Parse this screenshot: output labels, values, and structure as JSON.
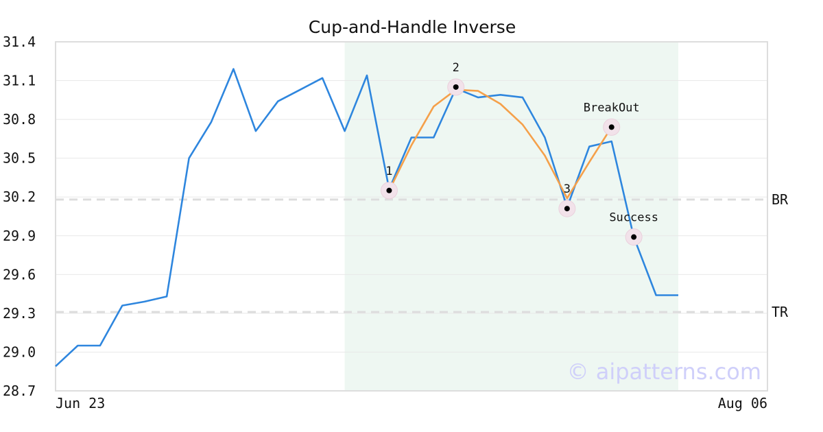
{
  "chart_data": {
    "type": "line",
    "title": "Cup-and-Handle Inverse",
    "xlabel": "",
    "ylabel": "",
    "ylim": [
      28.7,
      31.4
    ],
    "yticks": [
      "31.4",
      "31.1",
      "30.8",
      "30.5",
      "30.2",
      "29.9",
      "29.6",
      "29.3",
      "29.0",
      "28.7"
    ],
    "xtick_labels": [
      "Jun 23",
      "Aug 06"
    ],
    "grid": true,
    "series": [
      {
        "color": "#2e86de",
        "values": [
          28.89,
          29.05,
          29.05,
          29.36,
          29.39,
          29.43,
          30.5,
          30.78,
          31.19,
          30.71,
          30.94,
          31.03,
          31.12,
          30.71,
          31.14,
          30.26,
          30.66,
          30.66,
          31.04,
          30.97,
          30.99,
          30.97,
          30.66,
          30.12,
          30.59,
          30.63,
          29.89,
          29.44,
          29.44
        ]
      },
      {
        "color": "#f5a04a",
        "x_index": [
          15,
          16,
          17,
          18,
          19,
          20,
          21,
          22,
          23,
          24,
          25
        ],
        "values": [
          30.25,
          30.6,
          30.9,
          31.03,
          31.02,
          30.92,
          30.76,
          30.52,
          30.19,
          30.47,
          30.74
        ]
      }
    ],
    "highlight_region": {
      "from_index": 13,
      "to_index": 28,
      "color": "#eef7f2"
    },
    "levels": [
      {
        "label": "BR",
        "value": 30.18
      },
      {
        "label": "TR",
        "value": 29.31
      }
    ],
    "points": [
      {
        "label": "1",
        "index": 15,
        "value": 30.25
      },
      {
        "label": "2",
        "index": 18,
        "value": 31.05
      },
      {
        "label": "3",
        "index": 23,
        "value": 30.11
      },
      {
        "label": "BreakOut",
        "index": 25,
        "value": 30.74
      },
      {
        "label": "Success",
        "index": 26,
        "value": 29.89
      }
    ],
    "watermark": "© aipatterns.com"
  }
}
